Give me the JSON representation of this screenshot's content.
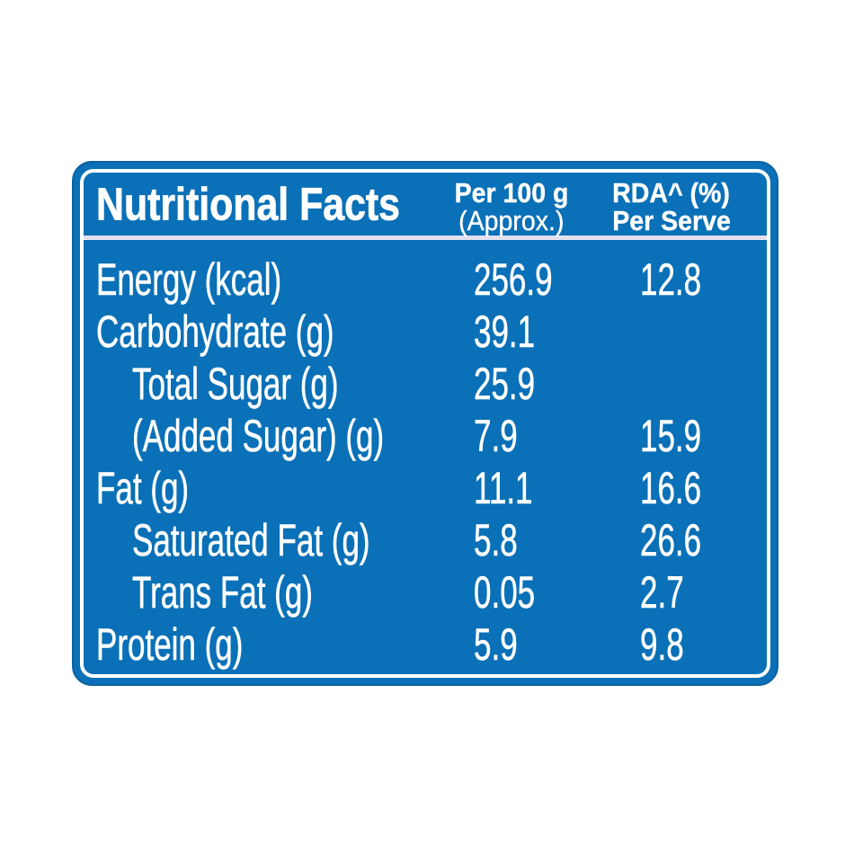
{
  "label": {
    "title": "Nutritional Facts",
    "columns": {
      "per_100g": {
        "line1": "Per 100 g",
        "line2": "(Approx.)"
      },
      "rda": {
        "line1": "RDA^ (%)",
        "line2": "Per Serve"
      }
    },
    "rows": [
      {
        "label": "Energy (kcal)",
        "per_100g": "256.9",
        "rda_percent": "12.8"
      },
      {
        "label": "Carbohydrate (g)",
        "per_100g": "39.1",
        "rda_percent": ""
      },
      {
        "label": "Total Sugar (g)",
        "per_100g": "25.9",
        "rda_percent": ""
      },
      {
        "label": "(Added Sugar) (g)",
        "per_100g": "7.9",
        "rda_percent": "15.9"
      },
      {
        "label": "Fat (g)",
        "per_100g": "11.1",
        "rda_percent": "16.6"
      },
      {
        "label": "Saturated Fat (g)",
        "per_100g": "5.8",
        "rda_percent": "26.6"
      },
      {
        "label": "Trans Fat (g)",
        "per_100g": "0.05",
        "rda_percent": "2.7"
      },
      {
        "label": "Protein (g)",
        "per_100g": "5.9",
        "rda_percent": "9.8"
      }
    ],
    "colors": {
      "panel_blue": "#0a70b7",
      "edge_blue": "#0b629e",
      "text_white": "#ffffff",
      "divider_line": "#e3e1f0",
      "page_background": "#ffffff"
    }
  }
}
